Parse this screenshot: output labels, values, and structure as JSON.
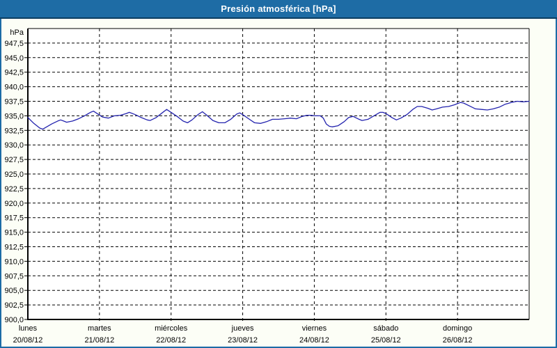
{
  "window": {
    "title": "Presión atmosférica [hPa]"
  },
  "colors": {
    "frame": "#1C6CA6",
    "titlebar_bg": "#1E6CA5",
    "titlebar_edge": "#0C3D61",
    "titlebar_text": "#FFFFFF",
    "panel_bg": "#FCFEF6",
    "plot_bg": "#FFFFFF",
    "grid": "#000000",
    "axis": "#000000",
    "text": "#000000",
    "line": "#2323AE"
  },
  "chart_data": {
    "type": "line",
    "title": "Presión atmosférica [hPa]",
    "ylabel": "hPa",
    "unit": "hPa",
    "ylim": [
      900,
      950
    ],
    "ytick_step": 2.5,
    "yticks": [
      947.5,
      945.0,
      942.5,
      940.0,
      937.5,
      935.0,
      932.5,
      930.0,
      927.5,
      925.0,
      922.5,
      920.0,
      917.5,
      915.0,
      912.5,
      910.0,
      907.5,
      905.0,
      902.5,
      900.0
    ],
    "ytick_labels": [
      "947,5",
      "945,0",
      "942,5",
      "940,0",
      "937,5",
      "935,0",
      "932,5",
      "930,0",
      "927,5",
      "925,0",
      "922,5",
      "920,0",
      "917,5",
      "915,0",
      "912,5",
      "910,0",
      "907,5",
      "905,0",
      "902,5",
      "900,0"
    ],
    "xlim_hours": [
      0,
      168
    ],
    "hours_per_day": 24,
    "x_days": [
      {
        "name": "lunes",
        "date": "20/08/12"
      },
      {
        "name": "martes",
        "date": "21/08/12"
      },
      {
        "name": "miércoles",
        "date": "22/08/12"
      },
      {
        "name": "jueves",
        "date": "23/08/12"
      },
      {
        "name": "viernes",
        "date": "24/08/12"
      },
      {
        "name": "sábado",
        "date": "25/08/12"
      },
      {
        "name": "domingo",
        "date": "26/08/12"
      }
    ],
    "grid": true,
    "legend": "none",
    "series": [
      {
        "name": "Presión atmosférica",
        "unit": "hPa",
        "color": "#2323AE",
        "points_t_hours_p_hpa": [
          [
            0,
            934.7
          ],
          [
            2,
            933.7
          ],
          [
            4,
            932.9
          ],
          [
            5,
            932.7
          ],
          [
            6,
            933.0
          ],
          [
            8,
            933.6
          ],
          [
            10,
            934.1
          ],
          [
            11,
            934.3
          ],
          [
            12,
            934.1
          ],
          [
            13,
            933.9
          ],
          [
            15,
            934.1
          ],
          [
            17,
            934.5
          ],
          [
            19,
            935.0
          ],
          [
            21,
            935.6
          ],
          [
            22,
            935.8
          ],
          [
            23.5,
            935.3
          ],
          [
            25,
            934.8
          ],
          [
            27,
            934.6
          ],
          [
            29,
            935.0
          ],
          [
            31,
            935.1
          ],
          [
            33,
            935.4
          ],
          [
            34,
            935.6
          ],
          [
            36,
            935.2
          ],
          [
            38,
            934.7
          ],
          [
            40,
            934.3
          ],
          [
            41,
            934.2
          ],
          [
            43,
            934.7
          ],
          [
            45,
            935.5
          ],
          [
            46.5,
            936.1
          ],
          [
            48,
            935.6
          ],
          [
            50,
            934.9
          ],
          [
            52,
            934.1
          ],
          [
            53.5,
            933.8
          ],
          [
            55,
            934.3
          ],
          [
            57,
            935.2
          ],
          [
            58.5,
            935.7
          ],
          [
            60,
            935.1
          ],
          [
            62,
            934.2
          ],
          [
            64,
            933.8
          ],
          [
            66,
            933.8
          ],
          [
            68,
            934.4
          ],
          [
            70,
            935.3
          ],
          [
            71,
            935.5
          ],
          [
            72,
            935.2
          ],
          [
            74,
            934.5
          ],
          [
            76,
            933.8
          ],
          [
            78,
            933.7
          ],
          [
            80,
            934.0
          ],
          [
            82,
            934.4
          ],
          [
            84,
            934.4
          ],
          [
            86,
            934.5
          ],
          [
            88,
            934.6
          ],
          [
            90,
            934.5
          ],
          [
            92,
            934.9
          ],
          [
            93.5,
            935.1
          ],
          [
            95,
            935.1
          ],
          [
            96,
            935.0
          ],
          [
            98,
            935.0
          ],
          [
            99,
            934.6
          ],
          [
            100,
            933.6
          ],
          [
            101,
            933.2
          ],
          [
            102,
            933.1
          ],
          [
            104,
            933.3
          ],
          [
            106,
            934.0
          ],
          [
            107.5,
            934.7
          ],
          [
            109,
            934.9
          ],
          [
            111,
            934.4
          ],
          [
            112,
            934.2
          ],
          [
            114,
            934.4
          ],
          [
            116,
            935.0
          ],
          [
            118,
            935.6
          ],
          [
            119,
            935.6
          ],
          [
            120,
            935.4
          ],
          [
            122,
            934.7
          ],
          [
            123.5,
            934.3
          ],
          [
            125,
            934.6
          ],
          [
            127,
            935.2
          ],
          [
            129,
            936.1
          ],
          [
            130.5,
            936.6
          ],
          [
            132,
            936.6
          ],
          [
            134,
            936.3
          ],
          [
            135.5,
            936.0
          ],
          [
            137,
            936.2
          ],
          [
            139,
            936.5
          ],
          [
            141,
            936.6
          ],
          [
            143,
            936.9
          ],
          [
            145,
            937.3
          ],
          [
            146,
            937.2
          ],
          [
            148,
            936.7
          ],
          [
            150,
            936.2
          ],
          [
            152,
            936.1
          ],
          [
            154,
            936.0
          ],
          [
            156,
            936.2
          ],
          [
            158,
            936.5
          ],
          [
            160,
            937.0
          ],
          [
            162,
            937.3
          ],
          [
            164,
            937.5
          ],
          [
            166,
            937.4
          ],
          [
            168,
            937.5
          ]
        ]
      }
    ]
  }
}
